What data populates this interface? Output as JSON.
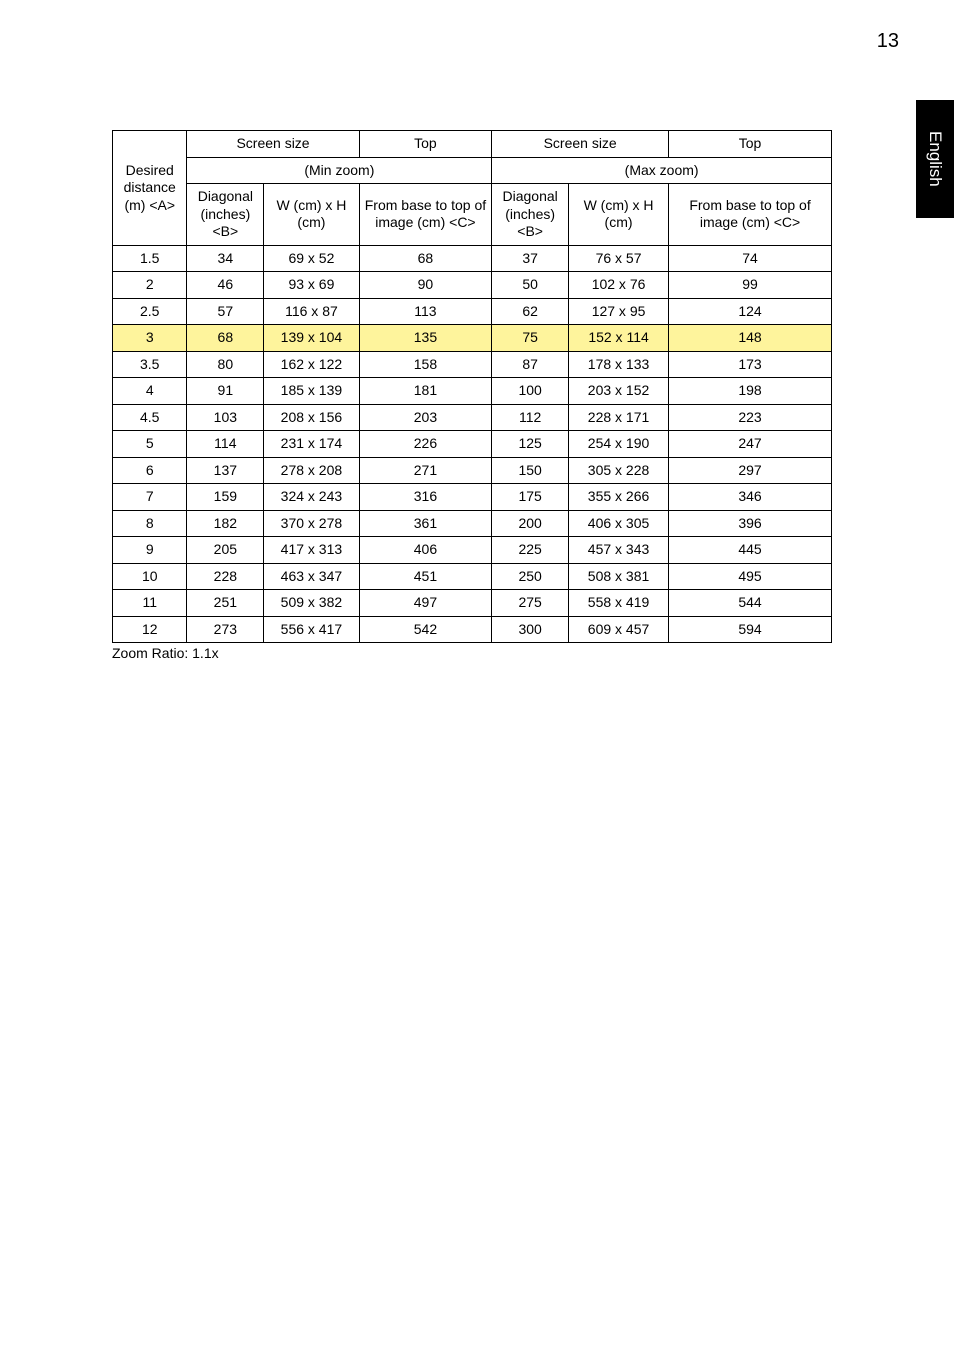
{
  "page_number": "13",
  "side_tab": "English",
  "footer": "Zoom Ratio: 1.1x",
  "colors": {
    "highlight_bg": "#fef49c",
    "border": "#000000",
    "text": "#000000",
    "tab_bg": "#000000",
    "tab_text": "#ffffff",
    "page_bg": "#ffffff"
  },
  "table": {
    "header_row1": {
      "desired_distance": "Desired distance (m) <A>",
      "screen_size_1": "Screen size",
      "top_1": "Top",
      "screen_size_2": "Screen size",
      "top_2": "Top"
    },
    "header_row2": {
      "min_zoom": "(Min zoom)",
      "max_zoom": "(Max zoom)"
    },
    "header_row3": {
      "diag1": "Diagonal (inches) <B>",
      "wh1": "W (cm) x H (cm)",
      "fb1": "From base to top of image (cm) <C>",
      "diag2": "Diagonal (inches) <B>",
      "wh2": "W (cm) x H (cm)",
      "fb2": "From base to top of image (cm) <C>"
    },
    "rows": [
      {
        "a": "1.5",
        "b": "34",
        "c": "69 x 52",
        "d": "68",
        "e": "37",
        "f": "76 x 57",
        "g": "74"
      },
      {
        "a": "2",
        "b": "46",
        "c": "93 x 69",
        "d": "90",
        "e": "50",
        "f": "102 x 76",
        "g": "99"
      },
      {
        "a": "2.5",
        "b": "57",
        "c": "116 x 87",
        "d": "113",
        "e": "62",
        "f": "127 x 95",
        "g": "124"
      },
      {
        "a": "3",
        "b": "68",
        "c": "139 x 104",
        "d": "135",
        "e": "75",
        "f": "152 x 114",
        "g": "148",
        "hl": true
      },
      {
        "a": "3.5",
        "b": "80",
        "c": "162 x 122",
        "d": "158",
        "e": "87",
        "f": "178 x 133",
        "g": "173"
      },
      {
        "a": "4",
        "b": "91",
        "c": "185 x 139",
        "d": "181",
        "e": "100",
        "f": "203 x 152",
        "g": "198"
      },
      {
        "a": "4.5",
        "b": "103",
        "c": "208 x 156",
        "d": "203",
        "e": "112",
        "f": "228 x 171",
        "g": "223"
      },
      {
        "a": "5",
        "b": "114",
        "c": "231 x 174",
        "d": "226",
        "e": "125",
        "f": "254 x 190",
        "g": "247"
      },
      {
        "a": "6",
        "b": "137",
        "c": "278 x 208",
        "d": "271",
        "e": "150",
        "f": "305 x 228",
        "g": "297"
      },
      {
        "a": "7",
        "b": "159",
        "c": "324 x 243",
        "d": "316",
        "e": "175",
        "f": "355 x 266",
        "g": "346"
      },
      {
        "a": "8",
        "b": "182",
        "c": "370 x 278",
        "d": "361",
        "e": "200",
        "f": "406 x 305",
        "g": "396"
      },
      {
        "a": "9",
        "b": "205",
        "c": "417 x 313",
        "d": "406",
        "e": "225",
        "f": "457 x 343",
        "g": "445"
      },
      {
        "a": "10",
        "b": "228",
        "c": "463 x 347",
        "d": "451",
        "e": "250",
        "f": "508 x 381",
        "g": "495"
      },
      {
        "a": "11",
        "b": "251",
        "c": "509 x 382",
        "d": "497",
        "e": "275",
        "f": "558 x 419",
        "g": "544"
      },
      {
        "a": "12",
        "b": "273",
        "c": "556 x 417",
        "d": "542",
        "e": "300",
        "f": "609 x 457",
        "g": "594"
      }
    ]
  }
}
